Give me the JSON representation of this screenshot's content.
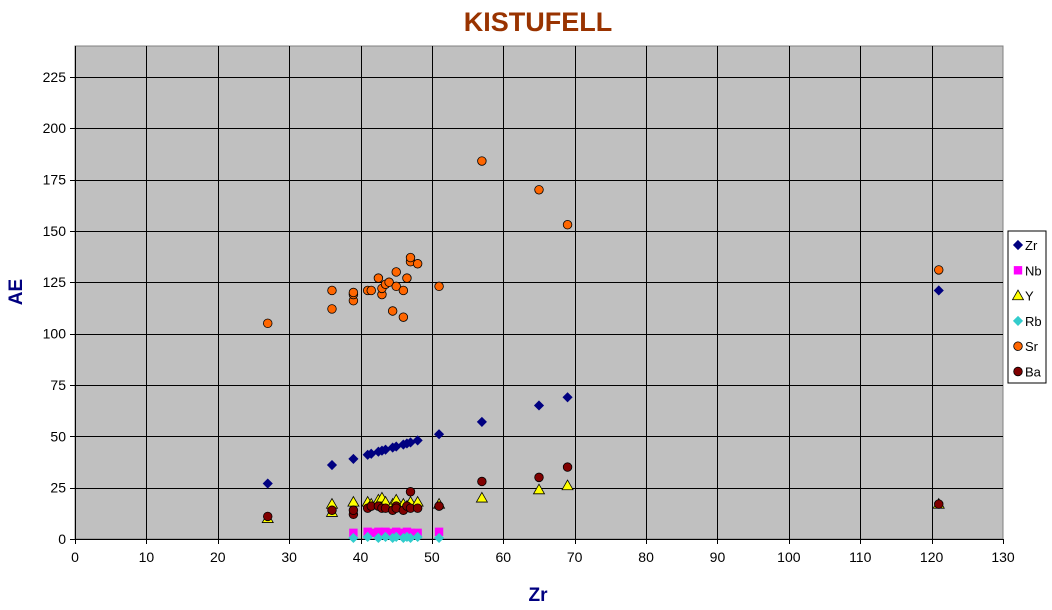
{
  "chart_data": {
    "type": "scatter",
    "title": "KISTUFELL",
    "xlabel": "Zr",
    "ylabel": "AE",
    "xlim": [
      0,
      130
    ],
    "ylim": [
      0,
      240
    ],
    "x_ticks": [
      0,
      10,
      20,
      30,
      40,
      50,
      60,
      70,
      80,
      90,
      100,
      110,
      120,
      130
    ],
    "y_ticks": [
      0,
      25,
      50,
      75,
      100,
      125,
      150,
      175,
      200,
      225
    ],
    "grid": true,
    "plot_background": "#C0C0C0",
    "legend_position": "right",
    "series": [
      {
        "name": "Zr",
        "marker": "diamond",
        "color": "#000080",
        "points": [
          [
            27,
            27
          ],
          [
            36,
            36
          ],
          [
            39,
            39
          ],
          [
            41,
            41
          ],
          [
            41.5,
            41.5
          ],
          [
            42.5,
            42.5
          ],
          [
            43,
            43
          ],
          [
            43.5,
            43.5
          ],
          [
            44.5,
            44.5
          ],
          [
            45,
            45
          ],
          [
            46,
            46
          ],
          [
            46.5,
            46.5
          ],
          [
            47,
            47
          ],
          [
            48,
            48
          ],
          [
            51,
            51
          ],
          [
            57,
            57
          ],
          [
            65,
            65
          ],
          [
            69,
            69
          ],
          [
            121,
            121
          ]
        ]
      },
      {
        "name": "Nb",
        "marker": "square",
        "color": "#FF00FF",
        "points": [
          [
            39,
            3
          ],
          [
            41,
            3.5
          ],
          [
            41.5,
            3
          ],
          [
            42.5,
            3.5
          ],
          [
            43,
            3
          ],
          [
            43.5,
            3.5
          ],
          [
            44.5,
            3
          ],
          [
            45,
            3.5
          ],
          [
            46,
            3
          ],
          [
            46.5,
            3.5
          ],
          [
            47,
            3
          ],
          [
            48,
            3
          ],
          [
            51,
            3.5
          ]
        ]
      },
      {
        "name": "Y",
        "marker": "triangle",
        "color": "#FFFF00",
        "points": [
          [
            27,
            10
          ],
          [
            36,
            13
          ],
          [
            36,
            17
          ],
          [
            39,
            18
          ],
          [
            41,
            18
          ],
          [
            41.5,
            17
          ],
          [
            42.5,
            19
          ],
          [
            43,
            20
          ],
          [
            43.5,
            18
          ],
          [
            44.5,
            17
          ],
          [
            45,
            19
          ],
          [
            46,
            17
          ],
          [
            46.5,
            16
          ],
          [
            47,
            18
          ],
          [
            48,
            18
          ],
          [
            51,
            17
          ],
          [
            57,
            20
          ],
          [
            65,
            24
          ],
          [
            69,
            26
          ],
          [
            121,
            17
          ]
        ]
      },
      {
        "name": "Rb",
        "marker": "diamond",
        "color": "#33CCCC",
        "points": [
          [
            39,
            0.5
          ],
          [
            41,
            1
          ],
          [
            42.5,
            0.5
          ],
          [
            43.5,
            1
          ],
          [
            44.5,
            0.5
          ],
          [
            45,
            1
          ],
          [
            46,
            0.5
          ],
          [
            46.5,
            1
          ],
          [
            47,
            0.5
          ],
          [
            48,
            1
          ],
          [
            51,
            0.5
          ]
        ]
      },
      {
        "name": "Sr",
        "marker": "circle",
        "color": "#FF6600",
        "points": [
          [
            27,
            105
          ],
          [
            36,
            112
          ],
          [
            36,
            121
          ],
          [
            39,
            116
          ],
          [
            39,
            119
          ],
          [
            39,
            120
          ],
          [
            41,
            121
          ],
          [
            41.5,
            121
          ],
          [
            42.5,
            127
          ],
          [
            43,
            119
          ],
          [
            43,
            122
          ],
          [
            43.5,
            124
          ],
          [
            44,
            125
          ],
          [
            44.5,
            111
          ],
          [
            45,
            123
          ],
          [
            45,
            130
          ],
          [
            46,
            108
          ],
          [
            46,
            121
          ],
          [
            46.5,
            127
          ],
          [
            47,
            135
          ],
          [
            47,
            137
          ],
          [
            48,
            134
          ],
          [
            51,
            123
          ],
          [
            57,
            184
          ],
          [
            65,
            170
          ],
          [
            69,
            153
          ],
          [
            121,
            131
          ]
        ]
      },
      {
        "name": "Ba",
        "marker": "circle",
        "color": "#800000",
        "points": [
          [
            27,
            11
          ],
          [
            36,
            14
          ],
          [
            39,
            12
          ],
          [
            39,
            14
          ],
          [
            41,
            15
          ],
          [
            41.5,
            16
          ],
          [
            42.5,
            16
          ],
          [
            43,
            15
          ],
          [
            43.5,
            15
          ],
          [
            44.5,
            14
          ],
          [
            45,
            16
          ],
          [
            45,
            15
          ],
          [
            46,
            14
          ],
          [
            46.5,
            16
          ],
          [
            47,
            15
          ],
          [
            47,
            23
          ],
          [
            48,
            15
          ],
          [
            51,
            16
          ],
          [
            57,
            28
          ],
          [
            65,
            30
          ],
          [
            69,
            35
          ],
          [
            121,
            17
          ]
        ]
      }
    ]
  }
}
